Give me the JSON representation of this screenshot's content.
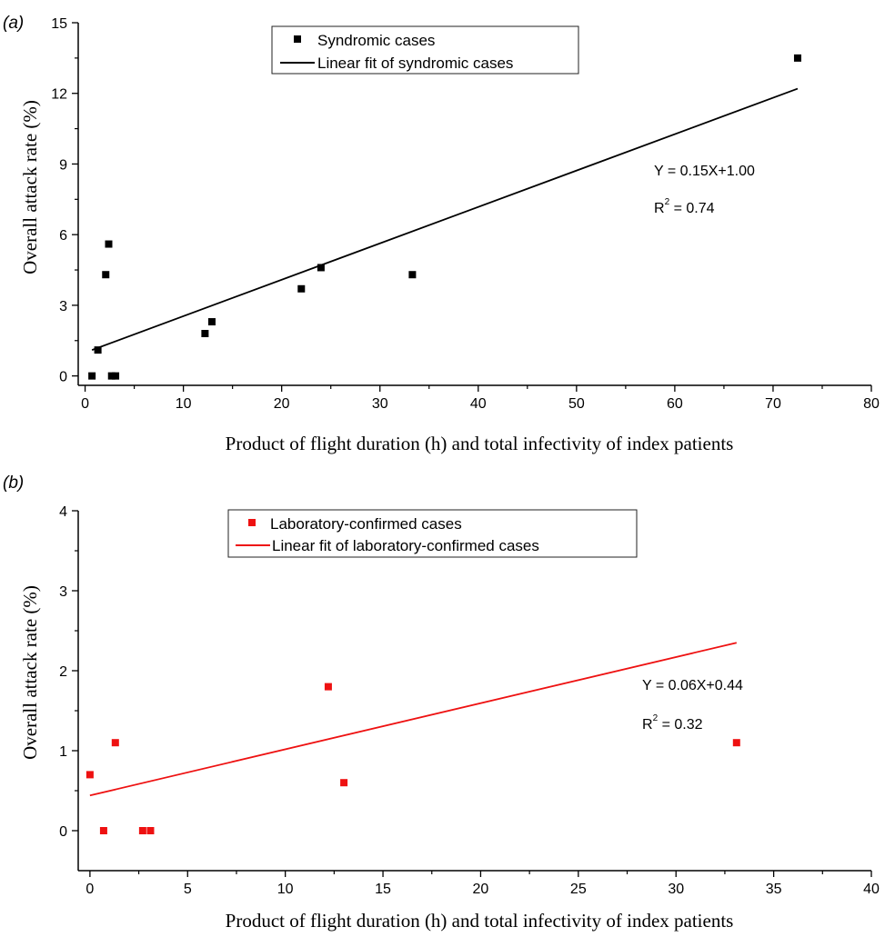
{
  "chart_data": [
    {
      "panel_label": "(a)",
      "type": "scatter",
      "title": "",
      "xlabel": "Product of flight duration (h) and total infectivity of index patients",
      "ylabel": "Overall attack rate (%)",
      "xlim": [
        -0.7,
        80
      ],
      "ylim": [
        -0.4,
        15
      ],
      "xticks": [
        0,
        10,
        20,
        30,
        40,
        50,
        60,
        70,
        80
      ],
      "yticks": [
        0,
        3,
        6,
        9,
        12,
        15
      ],
      "grid": false,
      "legend_position": "top-center",
      "color": "#000000",
      "series": [
        {
          "name": "Syndromic cases",
          "kind": "scatter",
          "points": [
            [
              0.7,
              0.0
            ],
            [
              1.3,
              1.1
            ],
            [
              2.1,
              4.3
            ],
            [
              2.4,
              5.6
            ],
            [
              2.7,
              0.0
            ],
            [
              3.1,
              0.0
            ],
            [
              12.2,
              1.8
            ],
            [
              12.9,
              2.3
            ],
            [
              22.0,
              3.7
            ],
            [
              24.0,
              4.6
            ],
            [
              33.3,
              4.3
            ],
            [
              72.5,
              13.5
            ]
          ]
        },
        {
          "name": "Linear fit of syndromic cases",
          "kind": "line",
          "points": [
            [
              0.7,
              1.1
            ],
            [
              72.5,
              12.2
            ]
          ]
        }
      ],
      "annotations": {
        "equation": "Y = 0.15X+1.00",
        "r2_label": "R",
        "r2_sup": "2",
        "r2_value": " = 0.74"
      }
    },
    {
      "panel_label": "(b)",
      "type": "scatter",
      "title": "",
      "xlabel": "Product of flight duration (h) and total infectivity of index patients",
      "ylabel": "Overall attack rate (%)",
      "xlim": [
        -0.6,
        40
      ],
      "ylim": [
        -0.5,
        4
      ],
      "xticks": [
        0,
        5,
        10,
        15,
        20,
        25,
        30,
        35,
        40
      ],
      "yticks": [
        0,
        1,
        2,
        3,
        4
      ],
      "grid": false,
      "legend_position": "top-center",
      "color": "#ee1111",
      "series": [
        {
          "name": "Laboratory-confirmed cases",
          "kind": "scatter",
          "points": [
            [
              0.0,
              0.7
            ],
            [
              0.7,
              0.0
            ],
            [
              1.3,
              1.1
            ],
            [
              2.7,
              0.0
            ],
            [
              3.1,
              0.0
            ],
            [
              12.2,
              1.8
            ],
            [
              13.0,
              0.6
            ],
            [
              33.1,
              1.1
            ]
          ]
        },
        {
          "name": "Linear fit of laboratory-confirmed cases",
          "kind": "line",
          "points": [
            [
              0.0,
              0.44
            ],
            [
              33.1,
              2.35
            ]
          ]
        }
      ],
      "annotations": {
        "equation": "Y = 0.06X+0.44",
        "r2_label": "R",
        "r2_sup": "2",
        "r2_value": " = 0.32"
      }
    }
  ]
}
